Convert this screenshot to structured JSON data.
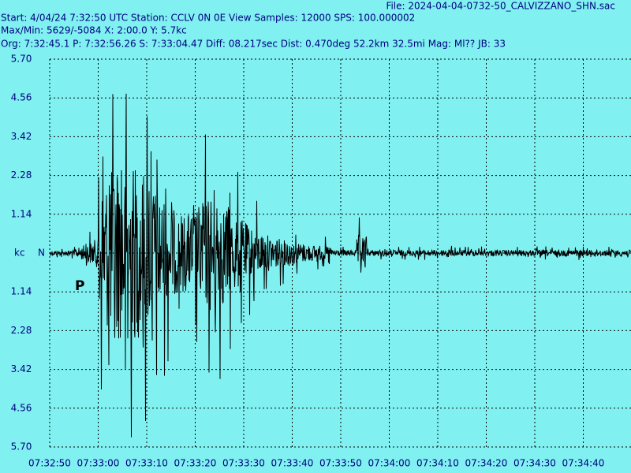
{
  "header": {
    "file": "File: 2024-04-04-0732-50_CALVIZZANO_SHN.sac",
    "start": "Start: 4/04/24  7:32:50 UTC Station: CCLV 0N 0E View Samples: 12000  SPS: 100.000002",
    "maxmin": "Max/Min: 5629/-5084 X: 2:00.0 Y: 5.7kc",
    "origin": "Org: 7:32:45.1 P: 7:32:56.26 S: 7:33:04.47 Diff: 08.217sec Dist: 0.470deg 52.2km 32.5mi  Mag: Ml?? JB: 33"
  },
  "plot": {
    "y_unit": "kc",
    "component": "N",
    "phase_marker": "P",
    "y_labels": [
      "5.70",
      "4.56",
      "3.42",
      "2.28",
      "1.14",
      "1.14",
      "2.28",
      "3.42",
      "4.56",
      "5.70"
    ],
    "x_labels": [
      "07:32:50",
      "07:33:00",
      "07:33:10",
      "07:33:20",
      "07:33:30",
      "07:33:40",
      "07:33:50",
      "07:34:00",
      "07:34:10",
      "07:34:20",
      "07:34:30",
      "07:34:40"
    ]
  }
}
